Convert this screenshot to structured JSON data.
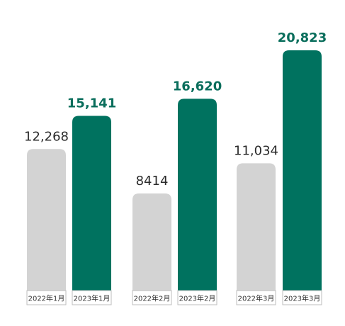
{
  "chart_data": {
    "type": "bar",
    "categories": [
      "2022年1月",
      "2023年1月",
      "2022年2月",
      "2023年2月",
      "2022年3月",
      "2023年3月"
    ],
    "values": [
      12268,
      15141,
      8414,
      16620,
      11034,
      20823
    ],
    "value_labels": [
      "12,268",
      "15,141",
      "8414",
      "16,620",
      "11,034",
      "20,823"
    ],
    "title": "",
    "xlabel": "",
    "ylabel": "",
    "ylim": [
      0,
      21000
    ],
    "grid": false,
    "legend": "none",
    "colors": {
      "2022": "#d3d3d3",
      "2023": "#00725f",
      "label_2022": "#2a2a2a",
      "label_2023": "#0a6e5c",
      "tick_text": "#333333",
      "tick_box": "#bdbdbd"
    },
    "bar_series": [
      "2022",
      "2023",
      "2022",
      "2023",
      "2022",
      "2023"
    ]
  }
}
